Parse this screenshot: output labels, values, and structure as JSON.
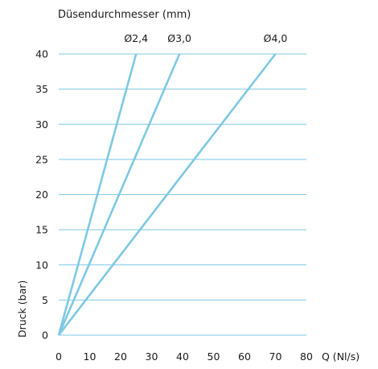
{
  "chart_data": {
    "type": "line",
    "title": "Düsendurchmesser (mm)",
    "xlabel": "Q (Nl/s)",
    "ylabel": "Druck (bar)",
    "xlim": [
      0,
      80
    ],
    "ylim": [
      0,
      40
    ],
    "x_ticks": [
      "0",
      "10",
      "20",
      "30",
      "40",
      "50",
      "60",
      "70",
      "80"
    ],
    "y_ticks": [
      "0",
      "5",
      "10",
      "15",
      "20",
      "25",
      "30",
      "35",
      "40"
    ],
    "grid": "horizontal",
    "series": [
      {
        "name": "Ø2,4",
        "x": [
          0,
          25
        ],
        "y": [
          0,
          40
        ]
      },
      {
        "name": "Ø3,0",
        "x": [
          0,
          39
        ],
        "y": [
          0,
          40
        ]
      },
      {
        "name": "Ø4,0",
        "x": [
          0,
          70
        ],
        "y": [
          0,
          40
        ]
      }
    ],
    "colors": {
      "line": "#7ec8e3",
      "grid": "#7ec8e3",
      "text": "#1a1a1a"
    }
  }
}
